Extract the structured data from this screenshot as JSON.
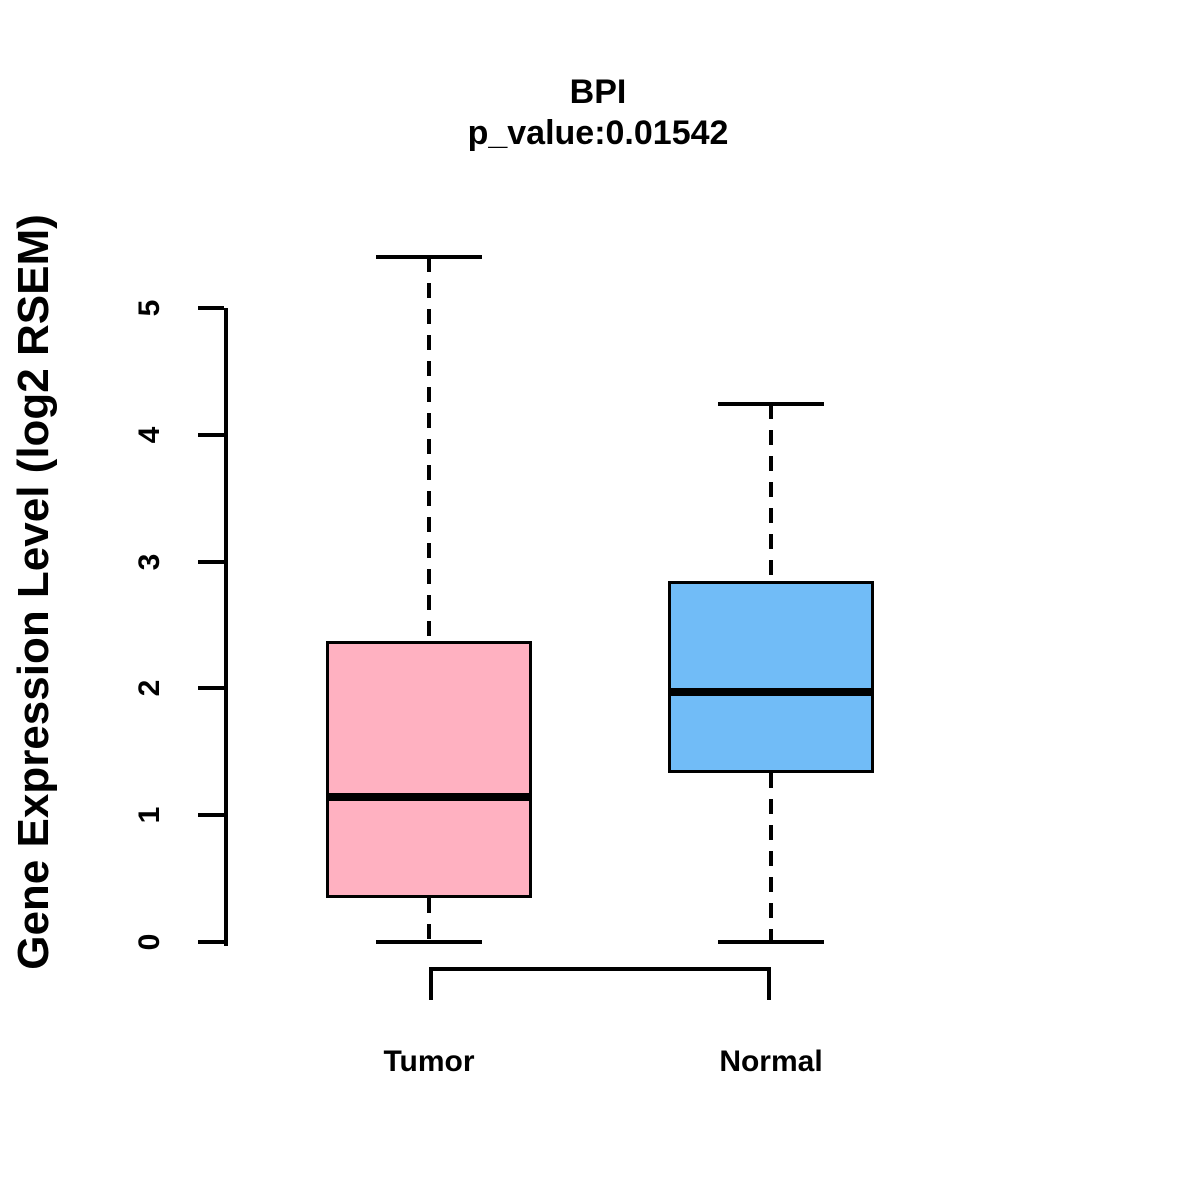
{
  "title": "BPI",
  "subtitle": "p_value:0.01542",
  "chart_data": {
    "type": "box",
    "title": "BPI",
    "subtitle": "p_value:0.01542",
    "xlabel": "",
    "ylabel": "Gene Expression Level (log2 RSEM)",
    "categories": [
      "Tumor",
      "Normal"
    ],
    "yticks": [
      0,
      1,
      2,
      3,
      4,
      5
    ],
    "ylim": [
      0,
      5
    ],
    "grid": false,
    "legend": "none",
    "series": [
      {
        "name": "Tumor",
        "whisker_low": 0,
        "q1": 0.35,
        "median": 1.14,
        "q3": 2.37,
        "whisker_high": 5.4,
        "fill_color": "#FFB1C1"
      },
      {
        "name": "Normal",
        "whisker_low": 0,
        "q1": 1.33,
        "median": 1.97,
        "q3": 2.85,
        "whisker_high": 4.24,
        "fill_color": "#71BCF7"
      }
    ],
    "comparison_bracket": {
      "from": "Tumor",
      "to": "Normal"
    },
    "colors": {
      "line": "#000000",
      "background": "#FFFFFF"
    }
  }
}
